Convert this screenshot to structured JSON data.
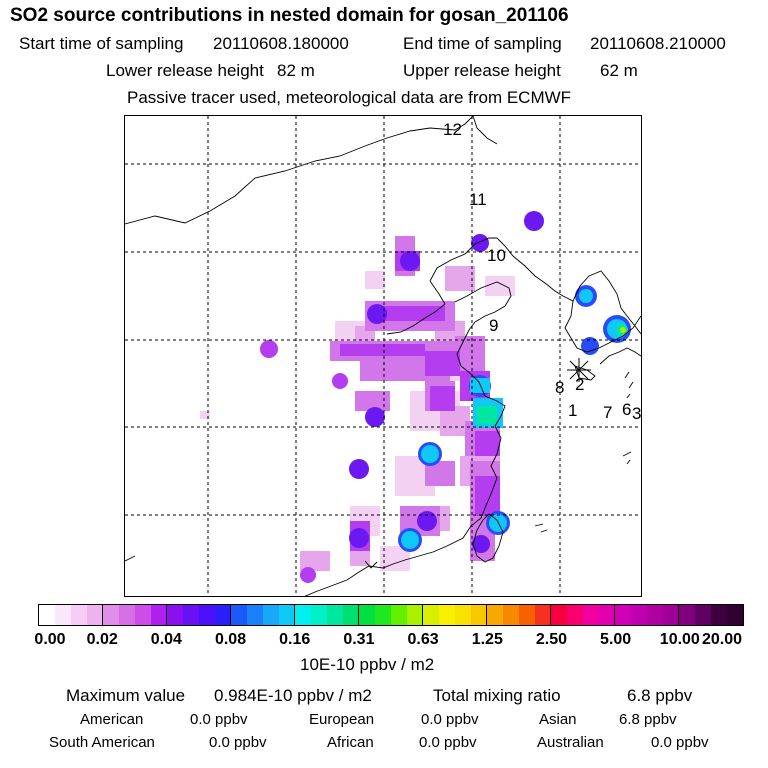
{
  "header": {
    "title": "SO2 source contributions in nested domain for gosan_201106",
    "start_label": "Start time of sampling",
    "start_value": "20110608.180000",
    "end_label": "End time of sampling",
    "end_value": "20110608.210000",
    "lower_label": "Lower release height",
    "lower_value": "82 m",
    "upper_label": "Upper release height",
    "upper_value": "62 m",
    "note": "Passive tracer used, meteorological data are from ECMWF"
  },
  "map": {
    "labels": [
      {
        "name": "label-12",
        "text": "12"
      },
      {
        "name": "label-11",
        "text": "11"
      },
      {
        "name": "label-10",
        "text": "10"
      },
      {
        "name": "label-9",
        "text": "9"
      },
      {
        "name": "label-8",
        "text": "8"
      },
      {
        "name": "label-2",
        "text": "2"
      },
      {
        "name": "label-1",
        "text": "1"
      },
      {
        "name": "label-7",
        "text": "7"
      },
      {
        "name": "label-6",
        "text": "6"
      },
      {
        "name": "label-3",
        "text": "3"
      }
    ],
    "receptor_marker": "asterisk-marker"
  },
  "colorbar": {
    "ticks": [
      "0.00",
      "0.02",
      "0.04",
      "0.08",
      "0.16",
      "0.31",
      "0.63",
      "1.25",
      "2.50",
      "5.00",
      "10.00",
      "20.00"
    ],
    "colors": [
      "#ffffff",
      "#fbe7fb",
      "#f5cdf5",
      "#eeb3ee",
      "#e28ee8",
      "#d86ee6",
      "#cc4de8",
      "#b01ff0",
      "#8a10f0",
      "#6a10f5",
      "#4b10f8",
      "#2a1ff8",
      "#1b5af8",
      "#1c80f8",
      "#18a8f8",
      "#10c8f8",
      "#00f0f0",
      "#00f0c8",
      "#00e8a0",
      "#00e070",
      "#00e040",
      "#20e820",
      "#60f000",
      "#a8f000",
      "#d8f000",
      "#f8f000",
      "#f8e000",
      "#f8c800",
      "#f8a800",
      "#f88800",
      "#f86000",
      "#f83020",
      "#f80040",
      "#f80070",
      "#f000a0",
      "#e000b0",
      "#d000b8",
      "#c000b0",
      "#b000a0",
      "#a00098",
      "#800080",
      "#600060",
      "#400040",
      "#300030"
    ],
    "units": "10E-10 ppbv / m2"
  },
  "summary": {
    "max_label": "Maximum value",
    "max_value": "0.984E-10 ppbv / m2",
    "total_label": "Total mixing ratio",
    "total_value": "6.8 ppbv",
    "regions": [
      {
        "name": "American",
        "value": "0.0 ppbv"
      },
      {
        "name": "European",
        "value": "0.0 ppbv"
      },
      {
        "name": "Asian",
        "value": "6.8 ppbv"
      },
      {
        "name": "South American",
        "value": "0.0 ppbv"
      },
      {
        "name": "African",
        "value": "0.0 ppbv"
      },
      {
        "name": "Australian",
        "value": "0.0 ppbv"
      }
    ]
  }
}
